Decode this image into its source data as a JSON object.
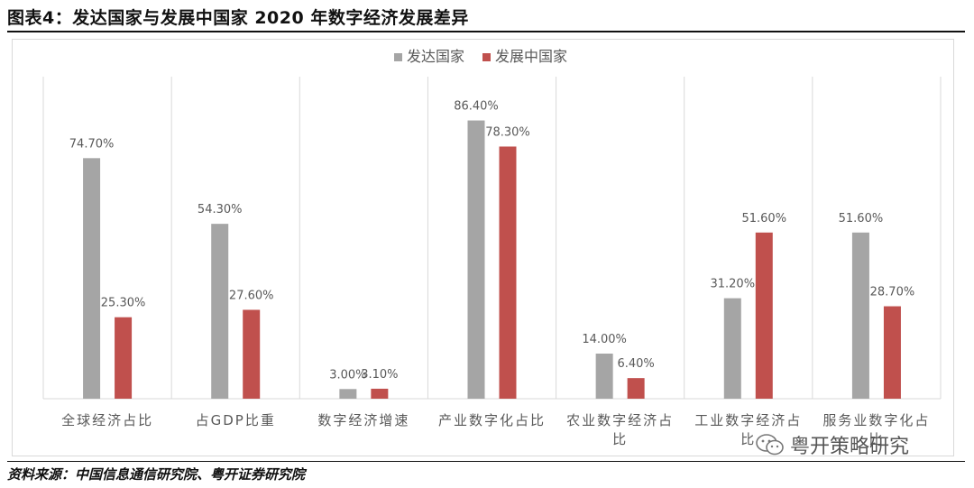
{
  "page": {
    "title": "图表4：发达国家与发展中国家 2020 年数字经济发展差异",
    "source": "资料来源：中国信息通信研究院、粤开证券研究院",
    "watermark": "粤开策略研究"
  },
  "chart_data": {
    "type": "bar",
    "categories": [
      "全球经济占比",
      "占GDP比重",
      "数字经济增速",
      "产业数字化占比",
      "农业数字经济占比",
      "工业数字经济占比",
      "服务业数字化占比"
    ],
    "series": [
      {
        "name": "发达国家",
        "color": "#a5a5a5",
        "values": [
          74.7,
          54.3,
          3.0,
          86.4,
          14.0,
          31.2,
          51.6
        ],
        "labels": [
          "74.70%",
          "54.30%",
          "3.00%",
          "86.40%",
          "14.00%",
          "31.20%",
          "51.60%"
        ]
      },
      {
        "name": "发展中国家",
        "color": "#c0504d",
        "values": [
          25.3,
          27.6,
          3.1,
          78.3,
          6.4,
          51.6,
          28.7
        ],
        "labels": [
          "25.30%",
          "27.60%",
          "3.10%",
          "78.30%",
          "6.40%",
          "51.60%",
          "28.70%"
        ]
      }
    ],
    "ylim": [
      0,
      100
    ],
    "legend": "top-center",
    "grid": false,
    "category_separators": true
  }
}
